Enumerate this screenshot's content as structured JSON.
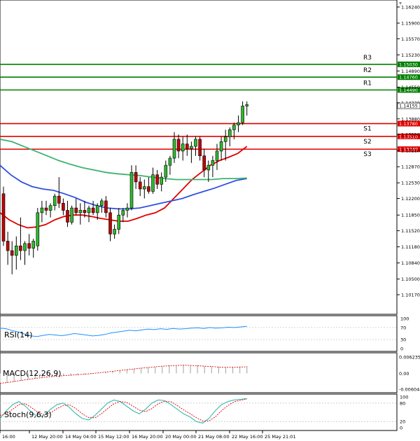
{
  "chart_data": [
    {
      "type": "candlestick",
      "ylim": [
        1.1,
        1.165
      ],
      "y_ticks": [
        "1.16240",
        "1.15900",
        "1.15570",
        "1.15230",
        "1.14890",
        "1.14550",
        "1.14220",
        "1.13880",
        "1.13550",
        "1.13210",
        "1.12870",
        "1.12530",
        "1.12200",
        "1.11850",
        "1.11520",
        "1.11180",
        "1.10840",
        "1.10500",
        "1.10170"
      ],
      "x_ticks": [
        "16:00",
        "12 May 20:00",
        "14 May 04:00",
        "15 May 12:00",
        "16 May 20:00",
        "20 May 00:00",
        "21 May 08:00",
        "22 May 16:00",
        "25 May 21:01"
      ],
      "current_price": "1.14155",
      "levels": [
        {
          "name": "R3",
          "value": "1.15030",
          "color": "#008000"
        },
        {
          "name": "R2",
          "value": "1.14760",
          "color": "#008000"
        },
        {
          "name": "R1",
          "value": "1.14490",
          "color": "#008000"
        },
        {
          "name": "S1",
          "value": "1.13780",
          "color": "#e00000"
        },
        {
          "name": "S2",
          "value": "1.13510",
          "color": "#e00000"
        },
        {
          "name": "S3",
          "value": "1.13240",
          "color": "#e00000"
        }
      ],
      "candles": [
        [
          1.123,
          1.1245,
          1.112,
          1.113
        ],
        [
          1.113,
          1.115,
          1.108,
          1.111
        ],
        [
          1.111,
          1.113,
          1.106,
          1.11
        ],
        [
          1.11,
          1.114,
          1.107,
          1.112
        ],
        [
          1.112,
          1.118,
          1.109,
          1.111
        ],
        [
          1.111,
          1.113,
          1.108,
          1.1125
        ],
        [
          1.1125,
          1.1145,
          1.11,
          1.1115
        ],
        [
          1.1115,
          1.1135,
          1.1095,
          1.113
        ],
        [
          1.112,
          1.12,
          1.111,
          1.119
        ],
        [
          1.119,
          1.1215,
          1.117,
          1.12
        ],
        [
          1.12,
          1.1215,
          1.1185,
          1.1195
        ],
        [
          1.1195,
          1.121,
          1.118,
          1.1205
        ],
        [
          1.1205,
          1.123,
          1.1195,
          1.1225
        ],
        [
          1.1225,
          1.1265,
          1.12,
          1.121
        ],
        [
          1.121,
          1.122,
          1.1185,
          1.1195
        ],
        [
          1.1195,
          1.1215,
          1.116,
          1.117
        ],
        [
          1.117,
          1.1205,
          1.1165,
          1.12
        ],
        [
          1.12,
          1.122,
          1.1185,
          1.119
        ],
        [
          1.119,
          1.121,
          1.1165,
          1.1195
        ],
        [
          1.1195,
          1.1215,
          1.118,
          1.119
        ],
        [
          1.119,
          1.1205,
          1.117,
          1.12
        ],
        [
          1.12,
          1.1215,
          1.1185,
          1.119
        ],
        [
          1.119,
          1.121,
          1.1175,
          1.1205
        ],
        [
          1.1205,
          1.122,
          1.119,
          1.1215
        ],
        [
          1.1215,
          1.1225,
          1.118,
          1.119
        ],
        [
          1.119,
          1.12,
          1.113,
          1.1145
        ],
        [
          1.1145,
          1.1165,
          1.1135,
          1.1155
        ],
        [
          1.1155,
          1.12,
          1.1145,
          1.1185
        ],
        [
          1.1185,
          1.12,
          1.117,
          1.1195
        ],
        [
          1.1195,
          1.121,
          1.118,
          1.12
        ],
        [
          1.12,
          1.129,
          1.1195,
          1.1275
        ],
        [
          1.1275,
          1.129,
          1.124,
          1.1255
        ],
        [
          1.1255,
          1.1265,
          1.1225,
          1.124
        ],
        [
          1.124,
          1.126,
          1.122,
          1.1245
        ],
        [
          1.1245,
          1.1265,
          1.123,
          1.1235
        ],
        [
          1.1235,
          1.1285,
          1.123,
          1.127
        ],
        [
          1.127,
          1.128,
          1.124,
          1.125
        ],
        [
          1.125,
          1.1275,
          1.1235,
          1.1265
        ],
        [
          1.1265,
          1.13,
          1.1255,
          1.129
        ],
        [
          1.129,
          1.131,
          1.127,
          1.1305
        ],
        [
          1.1305,
          1.136,
          1.1295,
          1.1345
        ],
        [
          1.1345,
          1.1355,
          1.1305,
          1.132
        ],
        [
          1.132,
          1.135,
          1.13,
          1.1335
        ],
        [
          1.1335,
          1.1355,
          1.131,
          1.1325
        ],
        [
          1.1325,
          1.134,
          1.1295,
          1.133
        ],
        [
          1.133,
          1.135,
          1.131,
          1.1345
        ],
        [
          1.1345,
          1.135,
          1.13,
          1.131
        ],
        [
          1.131,
          1.1325,
          1.1265,
          1.128
        ],
        [
          1.128,
          1.13,
          1.1255,
          1.129
        ],
        [
          1.129,
          1.131,
          1.1265,
          1.13
        ],
        [
          1.13,
          1.1335,
          1.128,
          1.132
        ],
        [
          1.132,
          1.135,
          1.13,
          1.134
        ],
        [
          1.134,
          1.1365,
          1.13,
          1.135
        ],
        [
          1.135,
          1.137,
          1.133,
          1.1365
        ],
        [
          1.1365,
          1.138,
          1.1345,
          1.1375
        ],
        [
          1.1375,
          1.1395,
          1.136,
          1.138
        ],
        [
          1.138,
          1.1425,
          1.1375,
          1.1415
        ],
        [
          1.1415,
          1.1425,
          1.1395,
          1.1418
        ]
      ],
      "moving_averages": [
        {
          "color": "#e00000",
          "values": [
            1.119,
            1.1175,
            1.1165,
            1.1158,
            1.116,
            1.1165,
            1.1175,
            1.1182,
            1.1185,
            1.1185,
            1.1182,
            1.1178,
            1.1175,
            1.1172,
            1.1172,
            1.1178,
            1.1185,
            1.119,
            1.12,
            1.122,
            1.124,
            1.126,
            1.1275,
            1.129,
            1.13,
            1.1307,
            1.1315,
            1.133
          ]
        },
        {
          "color": "#3050e0",
          "values": [
            1.129,
            1.127,
            1.1255,
            1.1245,
            1.124,
            1.1237,
            1.123,
            1.1222,
            1.1212,
            1.1205,
            1.12,
            1.1198,
            1.1198,
            1.12,
            1.1205,
            1.121,
            1.1215,
            1.122,
            1.1228,
            1.1235,
            1.1242,
            1.125,
            1.1258,
            1.1262
          ]
        },
        {
          "color": "#3cb371",
          "values": [
            1.1345,
            1.134,
            1.133,
            1.132,
            1.131,
            1.13,
            1.1292,
            1.1285,
            1.128,
            1.1275,
            1.1272,
            1.127,
            1.1268,
            1.1265,
            1.1262,
            1.126,
            1.126,
            1.126,
            1.126,
            1.1262,
            1.1262,
            1.1263
          ]
        }
      ]
    },
    {
      "type": "line",
      "title": "RSI(14)",
      "y_ticks": [
        "100",
        "70",
        "30",
        "0"
      ],
      "ylim": [
        0,
        100
      ],
      "values": [
        68,
        66,
        60,
        55,
        48,
        42,
        40,
        44,
        47,
        45,
        43,
        46,
        50,
        48,
        45,
        42,
        44,
        47,
        52,
        55,
        58,
        61,
        59,
        62,
        65,
        63,
        66,
        64,
        67,
        65,
        66,
        68,
        69,
        67,
        70,
        68,
        69,
        71,
        70,
        72,
        74
      ]
    },
    {
      "type": "histogram",
      "title": "MACD(12,26,9)",
      "y_ticks": [
        "0.006235",
        "0.00",
        "-0.006044"
      ],
      "ylim": [
        -0.006044,
        0.006235
      ],
      "histogram": [
        -0.004,
        -0.0036,
        -0.0032,
        -0.0028,
        -0.0024,
        -0.002,
        -0.0017,
        -0.0014,
        -0.0012,
        -0.001,
        -0.0008,
        -0.0006,
        -0.0004,
        -0.0002,
        0.0001,
        0.0004,
        0.0007,
        0.001,
        0.0013,
        0.0016,
        0.0019,
        0.0022,
        0.0024,
        0.0026,
        0.0028,
        0.003,
        0.0031,
        0.0031,
        0.003,
        0.0028,
        0.0026,
        0.0025,
        0.0024,
        0.0025,
        0.0026,
        0.0028
      ],
      "signal": [
        -0.0038,
        -0.0035,
        -0.0031,
        -0.0027,
        -0.0023,
        -0.0019,
        -0.0016,
        -0.0013,
        -0.0011,
        -0.0009,
        -0.0007,
        -0.0005,
        -0.0003,
        -0.0001,
        0.0002,
        0.0005,
        0.0008,
        0.0011,
        0.0014,
        0.0017,
        0.002,
        0.0022,
        0.0025,
        0.0027,
        0.0029,
        0.003,
        0.0031,
        0.003,
        0.0029,
        0.0027,
        0.0026,
        0.0024,
        0.0023,
        0.0023,
        0.0024,
        0.0025
      ]
    },
    {
      "type": "line",
      "title": "Stoch(9,6,3)",
      "y_ticks": [
        "100",
        "80",
        "20",
        "0"
      ],
      "ylim": [
        0,
        100
      ],
      "main": [
        30,
        55,
        75,
        85,
        70,
        50,
        35,
        40,
        60,
        75,
        80,
        65,
        45,
        30,
        25,
        40,
        60,
        80,
        90,
        85,
        70,
        55,
        45,
        60,
        80,
        90,
        88,
        75,
        60,
        45,
        35,
        20,
        15,
        30,
        55,
        75,
        85,
        90,
        92,
        95
      ],
      "signal": [
        40,
        45,
        60,
        75,
        78,
        65,
        50,
        42,
        48,
        62,
        72,
        74,
        62,
        45,
        33,
        32,
        45,
        62,
        78,
        85,
        82,
        70,
        57,
        52,
        62,
        78,
        86,
        84,
        72,
        58,
        46,
        33,
        22,
        22,
        35,
        55,
        72,
        84,
        89,
        93
      ]
    }
  ]
}
